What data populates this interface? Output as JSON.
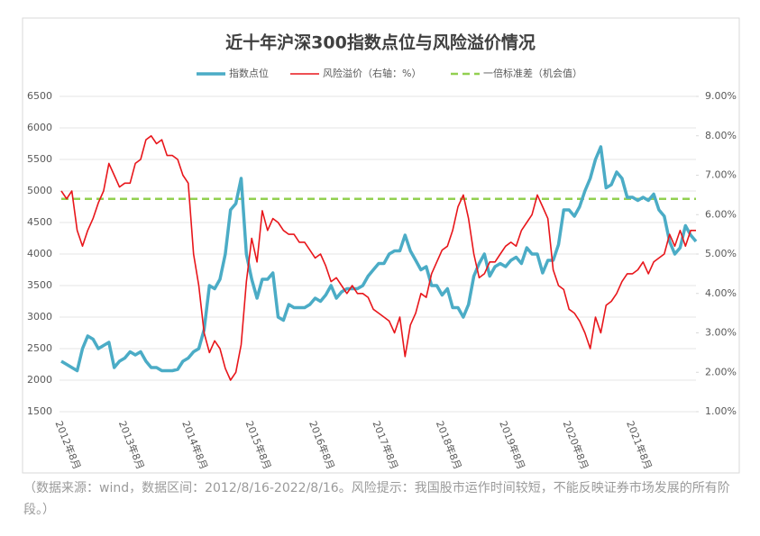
{
  "chart_data": {
    "type": "line",
    "title": "近十年沪深300指数点位与风险溢价情况",
    "categories": [
      "2012年8月",
      null,
      null,
      null,
      null,
      null,
      null,
      null,
      null,
      null,
      null,
      null,
      "2013年8月",
      null,
      null,
      null,
      null,
      null,
      null,
      null,
      null,
      null,
      null,
      null,
      "2014年8月",
      null,
      null,
      null,
      null,
      null,
      null,
      null,
      null,
      null,
      null,
      null,
      "2015年8月",
      null,
      null,
      null,
      null,
      null,
      null,
      null,
      null,
      null,
      null,
      null,
      "2016年8月",
      null,
      null,
      null,
      null,
      null,
      null,
      null,
      null,
      null,
      null,
      null,
      "2017年8月",
      null,
      null,
      null,
      null,
      null,
      null,
      null,
      null,
      null,
      null,
      null,
      "2018年8月",
      null,
      null,
      null,
      null,
      null,
      null,
      null,
      null,
      null,
      null,
      null,
      "2019年8月",
      null,
      null,
      null,
      null,
      null,
      null,
      null,
      null,
      null,
      null,
      null,
      "2020年8月",
      null,
      null,
      null,
      null,
      null,
      null,
      null,
      null,
      null,
      null,
      null,
      "2021年8月",
      null,
      null,
      null,
      null,
      null,
      null,
      null,
      null,
      null,
      null,
      null,
      null
    ],
    "series": [
      {
        "name": "指数点位",
        "color": "#4bacc6",
        "axis": "y",
        "values": [
          2300,
          2250,
          2200,
          2150,
          2500,
          2700,
          2650,
          2500,
          2550,
          2600,
          2200,
          2300,
          2350,
          2450,
          2400,
          2450,
          2300,
          2200,
          2200,
          2150,
          2150,
          2150,
          2170,
          2300,
          2350,
          2450,
          2500,
          2800,
          3500,
          3450,
          3600,
          4000,
          4700,
          4800,
          5200,
          4000,
          3600,
          3300,
          3600,
          3600,
          3700,
          3000,
          2950,
          3200,
          3150,
          3150,
          3150,
          3200,
          3300,
          3250,
          3350,
          3500,
          3300,
          3400,
          3450,
          3450,
          3450,
          3500,
          3650,
          3750,
          3850,
          3850,
          4000,
          4050,
          4050,
          4300,
          4050,
          3900,
          3750,
          3800,
          3500,
          3500,
          3350,
          3450,
          3150,
          3150,
          3000,
          3200,
          3650,
          3850,
          4000,
          3650,
          3800,
          3850,
          3800,
          3900,
          3950,
          3850,
          4100,
          4000,
          4000,
          3700,
          3900,
          3900,
          4150,
          4700,
          4700,
          4600,
          4750,
          5000,
          5200,
          5500,
          5700,
          5050,
          5100,
          5300,
          5200,
          4900,
          4900,
          4850,
          4900,
          4850,
          4950,
          4700,
          4600,
          4200,
          4000,
          4100,
          4450,
          4300,
          4200
        ]
      },
      {
        "name": "风险溢价（右轴：%）",
        "color": "#e8161b",
        "axis": "y2",
        "values": [
          6.6,
          6.4,
          6.6,
          5.6,
          5.2,
          5.6,
          5.9,
          6.3,
          6.6,
          7.3,
          7.0,
          6.7,
          6.8,
          6.8,
          7.3,
          7.4,
          7.9,
          8.0,
          7.8,
          7.9,
          7.5,
          7.5,
          7.4,
          7.0,
          6.8,
          5.0,
          4.2,
          3.0,
          2.5,
          2.8,
          2.6,
          2.1,
          1.8,
          2.0,
          2.7,
          4.3,
          5.4,
          4.8,
          6.1,
          5.6,
          5.9,
          5.8,
          5.6,
          5.5,
          5.5,
          5.3,
          5.3,
          5.1,
          4.9,
          5.0,
          4.7,
          4.3,
          4.4,
          4.2,
          4.0,
          4.2,
          4.0,
          4.0,
          3.9,
          3.6,
          3.5,
          3.4,
          3.3,
          3.0,
          3.4,
          2.4,
          3.2,
          3.5,
          4.0,
          3.9,
          4.5,
          4.8,
          5.1,
          5.2,
          5.6,
          6.2,
          6.5,
          5.9,
          5.0,
          4.4,
          4.5,
          4.8,
          4.8,
          5.0,
          5.2,
          5.3,
          5.2,
          5.6,
          5.8,
          6.0,
          6.5,
          6.2,
          5.9,
          4.6,
          4.2,
          4.1,
          3.6,
          3.5,
          3.3,
          3.0,
          2.6,
          3.4,
          3.0,
          3.7,
          3.8,
          4.0,
          4.3,
          4.5,
          4.5,
          4.6,
          4.8,
          4.5,
          4.8,
          4.9,
          5.0,
          5.5,
          5.2,
          5.6,
          5.2,
          5.6,
          5.6
        ]
      }
    ],
    "reference": {
      "name": "一倍标准差（机会值）",
      "value": 6.4,
      "color": "#92d050",
      "axis": "y2",
      "dashed": true
    },
    "ylim": [
      1500,
      6500
    ],
    "yticks": [
      1500,
      2000,
      2500,
      3000,
      3500,
      4000,
      4500,
      5000,
      5500,
      6000,
      6500
    ],
    "y2lim": [
      1,
      9
    ],
    "y2ticks": [
      {
        "value": 1,
        "label": "1.00%"
      },
      {
        "value": 2,
        "label": "2.00%"
      },
      {
        "value": 3,
        "label": "3.00%"
      },
      {
        "value": 4,
        "label": "4.00%"
      },
      {
        "value": 5,
        "label": "5.00%"
      },
      {
        "value": 6,
        "label": "6.00%"
      },
      {
        "value": 7,
        "label": "7.00%"
      },
      {
        "value": 8,
        "label": "8.00%"
      },
      {
        "value": 9,
        "label": "9.00%"
      }
    ],
    "grid": true,
    "legend": "top"
  },
  "caption": "（数据来源：wind，数据区间：2012/8/16-2022/8/16。风险提示：我国股市运作时间较短，不能反映证券市场发展的所有阶段。）"
}
